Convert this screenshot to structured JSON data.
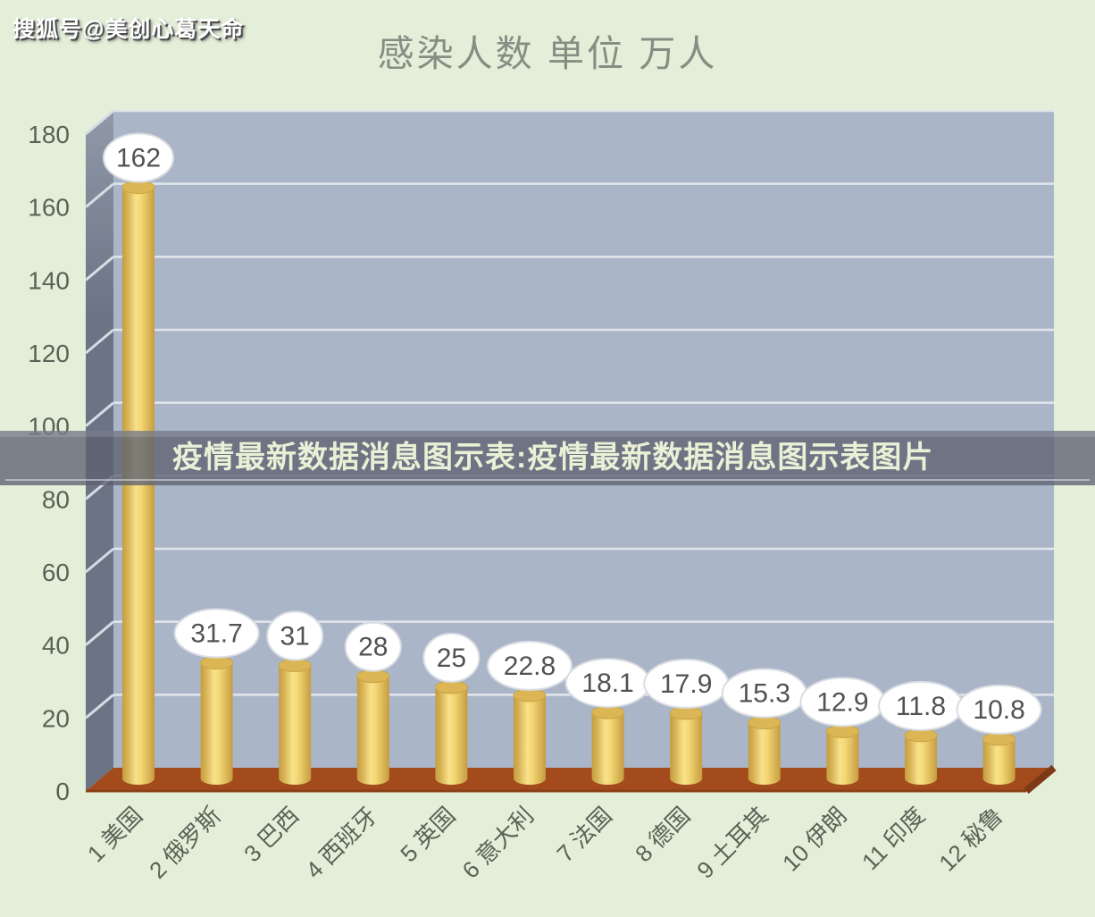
{
  "watermark": {
    "text": "搜狐号@美创心葛天命"
  },
  "banner": {
    "text": "疫情最新数据消息图示表:疫情最新数据消息图示表图片"
  },
  "chart_data": {
    "type": "bar",
    "subtype": "3d-cylinder",
    "title": "感染人数 单位 万人",
    "categories": [
      "1 美国",
      "2 俄罗斯",
      "3 巴西",
      "4 西班牙",
      "5 英国",
      "6 意大利",
      "7 法国",
      "8 德国",
      "9 土耳其",
      "10 伊朗",
      "11 印度",
      "12 秘鲁"
    ],
    "values": [
      162,
      31.7,
      31,
      28,
      25,
      22.8,
      18.1,
      17.9,
      15.3,
      12.9,
      11.8,
      10.8
    ],
    "ylabel": "",
    "xlabel": "",
    "ylim": [
      0,
      180
    ],
    "yticks": [
      0,
      20,
      40,
      60,
      80,
      100,
      120,
      140,
      160,
      180
    ],
    "grid": true,
    "legend": "none",
    "colors": {
      "background": "#e4efda",
      "back_wall": "#abb5c8",
      "side_wall_top": "#9099a8",
      "side_wall_bottom": "#6a7484",
      "floor": "#a34b1d",
      "floor_edge": "#8a3f17",
      "floor_right_shadow": "#7c3a17",
      "gridline": "#e2e6ec",
      "wall_stub": "#d7dce3",
      "bar_edge": "#c39d3f",
      "bar_mid": "#f8e18a",
      "bar_top": "#dcb655",
      "bar_top_rim": "#c9a544",
      "bubble_fill": "#ffffff",
      "bubble_stroke": "#d9dce2",
      "bubble_text": "#515254",
      "axis_text": "#5c6156",
      "title_text": "#878d83",
      "banner_bg": "#5c6271",
      "banner_text": "#eaf0d6"
    }
  }
}
